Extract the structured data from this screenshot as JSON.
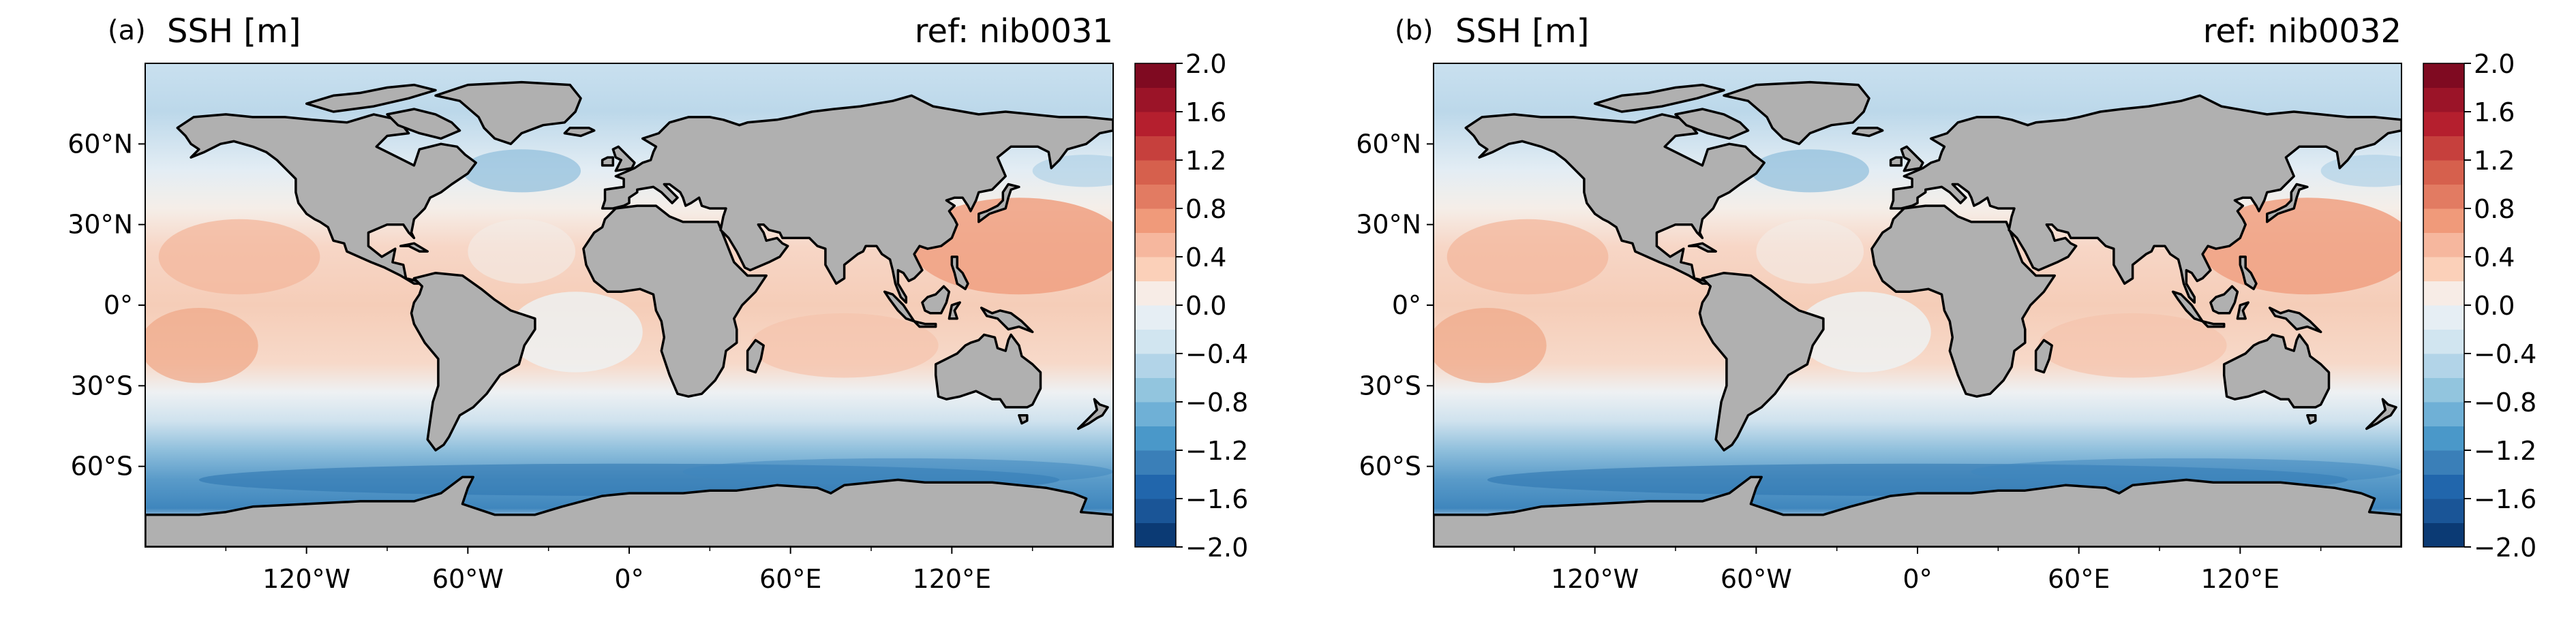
{
  "figure": {
    "variable_label": "SSH [m]",
    "panels": [
      {
        "panel_label": "(a)",
        "title": "SSH [m]",
        "ref_label": "ref: nib0031"
      },
      {
        "panel_label": "(b)",
        "title": "SSH [m]",
        "ref_label": "ref: nib0032"
      }
    ],
    "lat_ticks": [
      "60°N",
      "30°N",
      "0°",
      "30°S",
      "60°S"
    ],
    "lat_values": [
      60,
      30,
      0,
      -30,
      -60
    ],
    "lon_ticks": [
      "120°W",
      "60°W",
      "0°",
      "60°E",
      "120°E"
    ],
    "lon_values": [
      -120,
      -60,
      0,
      60,
      120
    ],
    "map_extent": {
      "lon": [
        -180,
        180
      ],
      "lat": [
        -90,
        90
      ]
    },
    "colorbar": {
      "tick_labels": [
        "2.0",
        "1.6",
        "1.2",
        "0.8",
        "0.4",
        "0.0",
        "−0.4",
        "−0.8",
        "−1.2",
        "−1.6",
        "−2.0"
      ],
      "tick_values": [
        2.0,
        1.6,
        1.2,
        0.8,
        0.4,
        0.0,
        -0.4,
        -0.8,
        -1.2,
        -1.6,
        -2.0
      ],
      "range": [
        -2.0,
        2.0
      ],
      "levels": 20,
      "colormap": "RdBu_r"
    },
    "colors": {
      "land": "#b0b0b0",
      "coast": "#000000",
      "deep_blue": "#3a7fb8",
      "neutral": "#f6f3ef",
      "warm": "#f4b49b"
    }
  }
}
